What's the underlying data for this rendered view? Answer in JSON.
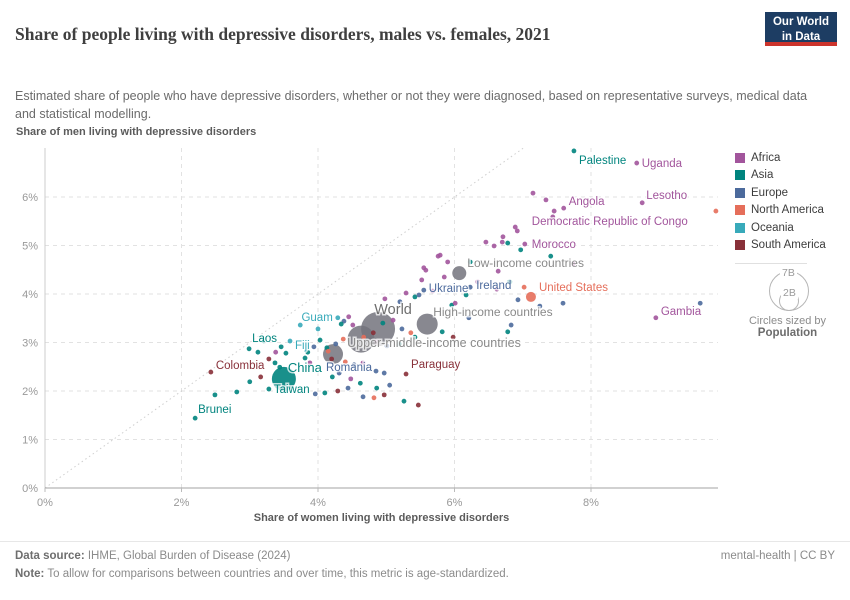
{
  "header": {
    "title": "Share of people living with depressive disorders, males vs. females, 2021",
    "subtitle": "Estimated share of people who have depressive disorders, whether or not they were diagnosed, based on representative surveys, medical data and statistical modelling.",
    "logo_line1": "Our World",
    "logo_line2": "in Data"
  },
  "axes": {
    "x_title": "Share of women living with depressive disorders",
    "y_title": "Share of men living with depressive disorders",
    "x_tick_labels": [
      "0%",
      "2%",
      "4%",
      "6%",
      "8%"
    ],
    "y_tick_labels": [
      "0%",
      "1%",
      "2%",
      "3%",
      "4%",
      "5%",
      "6%"
    ]
  },
  "legend": {
    "items": [
      {
        "label": "Africa",
        "color": "#a2559c"
      },
      {
        "label": "Asia",
        "color": "#00847e"
      },
      {
        "label": "Europe",
        "color": "#4c6a9c"
      },
      {
        "label": "North America",
        "color": "#e56e5a"
      },
      {
        "label": "Oceania",
        "color": "#38aaba"
      },
      {
        "label": "South America",
        "color": "#883039"
      }
    ],
    "size_legend": {
      "big": "7B",
      "small": "2B",
      "caption": "Circles sized by",
      "caption_bold": "Population"
    }
  },
  "footer": {
    "source_bold": "Data source:",
    "source": " IHME, Global Burden of Disease (2024)",
    "right": "mental-health | CC BY",
    "note_bold": "Note:",
    "note": " To allow for comparisons between countries and over time, this metric is age-standardized."
  },
  "colors": {
    "africa": "#a2559c",
    "asia": "#00847e",
    "europe": "#4c6a9c",
    "northamerica": "#e56e5a",
    "oceania": "#38aaba",
    "southamerica": "#883039",
    "agg": "#73737d"
  },
  "chart_data": {
    "type": "scatter",
    "title": "Share of people living with depressive disorders, males vs. females, 2021",
    "xlabel": "Share of women living with depressive disorders (%)",
    "ylabel": "Share of men living with depressive disorders (%)",
    "xlim": [
      0,
      9.86
    ],
    "ylim": [
      0,
      7.01
    ],
    "x_ticks": [
      0,
      2,
      4,
      6,
      8
    ],
    "y_ticks": [
      0,
      1,
      2,
      3,
      4,
      5,
      6
    ],
    "grid": true,
    "diagonal_reference_line": true,
    "legend_position": "right",
    "points": [
      {
        "name": "Palestine",
        "x": 7.75,
        "y": 6.95,
        "c": "asia"
      },
      {
        "name": "Uganda",
        "x": 8.67,
        "y": 6.7,
        "c": "africa"
      },
      {
        "name": "Angola",
        "x": 7.6,
        "y": 5.77,
        "c": "africa"
      },
      {
        "name": "Lesotho",
        "x": 8.75,
        "y": 5.88,
        "c": "africa"
      },
      {
        "name": "Democratic Republic of Congo",
        "x": 7.44,
        "y": 5.59,
        "c": "africa"
      },
      {
        "name": "Morocco",
        "x": 7.03,
        "y": 5.03,
        "c": "africa"
      },
      {
        "name": "Low-income countries",
        "x": 6.07,
        "y": 4.43,
        "c": "agg",
        "r": 7
      },
      {
        "name": "Ukraine",
        "x": 5.55,
        "y": 4.08,
        "c": "europe"
      },
      {
        "name": "Ireland",
        "x": 6.23,
        "y": 4.14,
        "c": "europe"
      },
      {
        "name": "United States",
        "x": 7.12,
        "y": 3.94,
        "c": "northamerica",
        "r": 5
      },
      {
        "name": "World",
        "x": 4.88,
        "y": 3.28,
        "c": "agg",
        "r": 17
      },
      {
        "name": "High-income countries",
        "x": 5.6,
        "y": 3.38,
        "c": "agg",
        "r": 10.5
      },
      {
        "name": "Upper-middle-income countries",
        "x": 4.63,
        "y": 3.07,
        "c": "agg",
        "r": 13.5
      },
      {
        "name": "",
        "x": 4.22,
        "y": 2.76,
        "c": "agg",
        "r": 10
      },
      {
        "name": "Guam",
        "x": 4.29,
        "y": 3.51,
        "c": "oceania"
      },
      {
        "name": "Laos",
        "x": 2.99,
        "y": 2.87,
        "c": "asia"
      },
      {
        "name": "Fiji",
        "x": 3.59,
        "y": 3.03,
        "c": "oceania"
      },
      {
        "name": "Colombia",
        "x": 2.43,
        "y": 2.39,
        "c": "southamerica"
      },
      {
        "name": "China",
        "x": 3.5,
        "y": 2.25,
        "c": "asia",
        "r": 12
      },
      {
        "name": "Taiwan",
        "x": 3.28,
        "y": 2.04,
        "c": "asia"
      },
      {
        "name": "Romania",
        "x": 4.85,
        "y": 2.41,
        "c": "europe"
      },
      {
        "name": "Paraguay",
        "x": 5.29,
        "y": 2.35,
        "c": "southamerica"
      },
      {
        "name": "Brunei",
        "x": 2.2,
        "y": 1.44,
        "c": "asia"
      },
      {
        "name": "Gambia",
        "x": 8.95,
        "y": 3.51,
        "c": "africa"
      },
      {
        "name": "",
        "x": 9.83,
        "y": 5.71,
        "c": "northamerica"
      },
      {
        "name": "",
        "x": 7.15,
        "y": 6.08,
        "c": "africa"
      },
      {
        "name": "",
        "x": 7.34,
        "y": 5.94,
        "c": "africa"
      },
      {
        "name": "",
        "x": 7.46,
        "y": 5.71,
        "c": "africa"
      },
      {
        "name": "",
        "x": 6.92,
        "y": 5.3,
        "c": "africa"
      },
      {
        "name": "",
        "x": 6.46,
        "y": 5.07,
        "c": "africa"
      },
      {
        "name": "",
        "x": 6.58,
        "y": 4.99,
        "c": "africa"
      },
      {
        "name": "",
        "x": 6.7,
        "y": 5.07,
        "c": "africa"
      },
      {
        "name": "",
        "x": 6.78,
        "y": 5.05,
        "c": "asia"
      },
      {
        "name": "",
        "x": 6.97,
        "y": 4.91,
        "c": "asia"
      },
      {
        "name": "",
        "x": 5.76,
        "y": 4.78,
        "c": "africa"
      },
      {
        "name": "",
        "x": 5.55,
        "y": 4.54,
        "c": "africa"
      },
      {
        "name": "",
        "x": 7.41,
        "y": 4.78,
        "c": "asia"
      },
      {
        "name": "",
        "x": 6.89,
        "y": 5.38,
        "c": "africa"
      },
      {
        "name": "",
        "x": 6.71,
        "y": 5.18,
        "c": "africa"
      },
      {
        "name": "",
        "x": 5.52,
        "y": 4.29,
        "c": "africa"
      },
      {
        "name": "",
        "x": 5.58,
        "y": 4.49,
        "c": "africa"
      },
      {
        "name": "",
        "x": 7.74,
        "y": 4.62,
        "c": "africa"
      },
      {
        "name": "",
        "x": 7.59,
        "y": 3.81,
        "c": "europe"
      },
      {
        "name": "",
        "x": 5.79,
        "y": 4.8,
        "c": "africa"
      },
      {
        "name": "",
        "x": 5.9,
        "y": 4.66,
        "c": "africa"
      },
      {
        "name": "",
        "x": 6.23,
        "y": 4.66,
        "c": "asia"
      },
      {
        "name": "",
        "x": 6.64,
        "y": 4.47,
        "c": "africa"
      },
      {
        "name": "",
        "x": 6.34,
        "y": 4.25,
        "c": "africa"
      },
      {
        "name": "",
        "x": 5.85,
        "y": 4.35,
        "c": "africa"
      },
      {
        "name": "",
        "x": 6.62,
        "y": 4.1,
        "c": "africa"
      },
      {
        "name": "",
        "x": 6.81,
        "y": 4.25,
        "c": "asia"
      },
      {
        "name": "",
        "x": 6.17,
        "y": 3.98,
        "c": "asia"
      },
      {
        "name": "",
        "x": 5.68,
        "y": 4.06,
        "c": "africa"
      },
      {
        "name": "",
        "x": 7.02,
        "y": 4.14,
        "c": "northamerica"
      },
      {
        "name": "",
        "x": 7.25,
        "y": 3.75,
        "c": "europe"
      },
      {
        "name": "",
        "x": 6.93,
        "y": 3.88,
        "c": "europe"
      },
      {
        "name": "",
        "x": 6.83,
        "y": 3.36,
        "c": "europe"
      },
      {
        "name": "",
        "x": 6.78,
        "y": 3.22,
        "c": "asia"
      },
      {
        "name": "",
        "x": 5.96,
        "y": 3.77,
        "c": "asia"
      },
      {
        "name": "",
        "x": 6.01,
        "y": 3.81,
        "c": "africa"
      },
      {
        "name": "",
        "x": 5.82,
        "y": 3.22,
        "c": "asia"
      },
      {
        "name": "",
        "x": 5.98,
        "y": 3.11,
        "c": "southamerica"
      },
      {
        "name": "",
        "x": 6.21,
        "y": 3.51,
        "c": "europe"
      },
      {
        "name": "",
        "x": 5.29,
        "y": 4.02,
        "c": "africa"
      },
      {
        "name": "",
        "x": 5.42,
        "y": 3.94,
        "c": "asia"
      },
      {
        "name": "",
        "x": 5.48,
        "y": 3.98,
        "c": "europe"
      },
      {
        "name": "",
        "x": 5.2,
        "y": 3.84,
        "c": "europe"
      },
      {
        "name": "",
        "x": 4.98,
        "y": 3.9,
        "c": "africa"
      },
      {
        "name": "",
        "x": 4.45,
        "y": 3.53,
        "c": "africa"
      },
      {
        "name": "",
        "x": 4.38,
        "y": 3.44,
        "c": "europe"
      },
      {
        "name": "",
        "x": 4.51,
        "y": 3.36,
        "c": "africa"
      },
      {
        "name": "",
        "x": 4.95,
        "y": 3.4,
        "c": "asia"
      },
      {
        "name": "",
        "x": 5.1,
        "y": 3.46,
        "c": "africa"
      },
      {
        "name": "",
        "x": 5.23,
        "y": 3.28,
        "c": "europe"
      },
      {
        "name": "",
        "x": 5.36,
        "y": 3.2,
        "c": "northamerica"
      },
      {
        "name": "",
        "x": 5.42,
        "y": 3.11,
        "c": "asia"
      },
      {
        "name": "",
        "x": 4.81,
        "y": 3.2,
        "c": "southamerica"
      },
      {
        "name": "",
        "x": 4.67,
        "y": 3.11,
        "c": "northamerica"
      },
      {
        "name": "",
        "x": 4.86,
        "y": 3.01,
        "c": "africa"
      },
      {
        "name": "",
        "x": 5.01,
        "y": 2.93,
        "c": "europe"
      },
      {
        "name": "",
        "x": 5.19,
        "y": 2.97,
        "c": "asia"
      },
      {
        "name": "",
        "x": 4.37,
        "y": 3.07,
        "c": "northamerica"
      },
      {
        "name": "",
        "x": 4.26,
        "y": 2.97,
        "c": "europe"
      },
      {
        "name": "",
        "x": 4.13,
        "y": 2.89,
        "c": "asia"
      },
      {
        "name": "",
        "x": 4.03,
        "y": 3.05,
        "c": "asia"
      },
      {
        "name": "",
        "x": 3.94,
        "y": 2.91,
        "c": "europe"
      },
      {
        "name": "",
        "x": 3.85,
        "y": 2.8,
        "c": "asia"
      },
      {
        "name": "",
        "x": 4.2,
        "y": 2.66,
        "c": "southamerica"
      },
      {
        "name": "",
        "x": 4.4,
        "y": 2.6,
        "c": "northamerica"
      },
      {
        "name": "",
        "x": 4.53,
        "y": 2.54,
        "c": "europe"
      },
      {
        "name": "",
        "x": 4.66,
        "y": 2.58,
        "c": "africa"
      },
      {
        "name": "",
        "x": 4.97,
        "y": 2.37,
        "c": "europe"
      },
      {
        "name": "",
        "x": 4.31,
        "y": 2.37,
        "c": "europe"
      },
      {
        "name": "",
        "x": 4.21,
        "y": 2.29,
        "c": "asia"
      },
      {
        "name": "",
        "x": 4.48,
        "y": 2.25,
        "c": "africa"
      },
      {
        "name": "",
        "x": 4.62,
        "y": 2.16,
        "c": "asia"
      },
      {
        "name": "",
        "x": 4.44,
        "y": 2.06,
        "c": "europe"
      },
      {
        "name": "",
        "x": 4.29,
        "y": 2.0,
        "c": "southamerica"
      },
      {
        "name": "",
        "x": 4.86,
        "y": 2.06,
        "c": "asia"
      },
      {
        "name": "",
        "x": 5.05,
        "y": 2.12,
        "c": "europe"
      },
      {
        "name": "",
        "x": 3.96,
        "y": 1.94,
        "c": "europe"
      },
      {
        "name": "",
        "x": 4.1,
        "y": 1.96,
        "c": "asia"
      },
      {
        "name": "",
        "x": 4.66,
        "y": 1.88,
        "c": "europe"
      },
      {
        "name": "",
        "x": 4.82,
        "y": 1.86,
        "c": "northamerica"
      },
      {
        "name": "",
        "x": 4.97,
        "y": 1.92,
        "c": "southamerica"
      },
      {
        "name": "",
        "x": 5.26,
        "y": 1.79,
        "c": "asia"
      },
      {
        "name": "",
        "x": 5.47,
        "y": 1.71,
        "c": "southamerica"
      },
      {
        "name": "",
        "x": 3.28,
        "y": 2.66,
        "c": "southamerica"
      },
      {
        "name": "",
        "x": 3.16,
        "y": 2.29,
        "c": "southamerica"
      },
      {
        "name": "",
        "x": 3.38,
        "y": 2.8,
        "c": "africa"
      },
      {
        "name": "",
        "x": 3.46,
        "y": 2.91,
        "c": "asia"
      },
      {
        "name": "",
        "x": 3.53,
        "y": 2.78,
        "c": "asia"
      },
      {
        "name": "",
        "x": 3.37,
        "y": 2.58,
        "c": "asia"
      },
      {
        "name": "",
        "x": 3.44,
        "y": 2.49,
        "c": "asia"
      },
      {
        "name": "",
        "x": 3.0,
        "y": 2.19,
        "c": "asia"
      },
      {
        "name": "",
        "x": 2.81,
        "y": 1.98,
        "c": "asia"
      },
      {
        "name": "",
        "x": 2.49,
        "y": 1.92,
        "c": "asia"
      },
      {
        "name": "",
        "x": 3.81,
        "y": 2.68,
        "c": "asia"
      },
      {
        "name": "",
        "x": 3.88,
        "y": 2.58,
        "c": "africa"
      },
      {
        "name": "",
        "x": 3.74,
        "y": 3.36,
        "c": "oceania"
      },
      {
        "name": "",
        "x": 4.0,
        "y": 3.28,
        "c": "oceania"
      },
      {
        "name": "",
        "x": 4.34,
        "y": 3.38,
        "c": "asia"
      },
      {
        "name": "",
        "x": 3.12,
        "y": 2.8,
        "c": "asia"
      },
      {
        "name": "",
        "x": 3.21,
        "y": 3.03,
        "c": "asia"
      },
      {
        "name": "",
        "x": 9.6,
        "y": 3.81,
        "c": "europe"
      },
      {
        "name": "",
        "x": 4.15,
        "y": 2.82,
        "c": "northamerica"
      }
    ],
    "labels": [
      {
        "text": "Palestine",
        "x": 7.75,
        "y": 6.95,
        "ox": 5,
        "oy": 13,
        "anchor": "start",
        "size": 11.5,
        "color": "asia"
      },
      {
        "text": "Uganda",
        "x": 8.67,
        "y": 6.7,
        "ox": 5,
        "oy": 4,
        "anchor": "start",
        "size": 11.5,
        "color": "africa"
      },
      {
        "text": "Angola",
        "x": 7.6,
        "y": 5.77,
        "ox": 5,
        "oy": -3,
        "anchor": "start",
        "size": 11.5,
        "color": "africa"
      },
      {
        "text": "Lesotho",
        "x": 8.75,
        "y": 5.88,
        "ox": 4,
        "oy": -4,
        "anchor": "start",
        "size": 11.5,
        "color": "africa"
      },
      {
        "text": "Democratic Republic of Congo",
        "x": 7.44,
        "y": 5.59,
        "ox": 57,
        "oy": 8,
        "anchor": "middle",
        "size": 11.5,
        "color": "africa"
      },
      {
        "text": "Morocco",
        "x": 7.03,
        "y": 5.03,
        "ox": 7,
        "oy": 4,
        "anchor": "start",
        "size": 11.5,
        "color": "africa"
      },
      {
        "text": "Low-income countries",
        "x": 6.07,
        "y": 4.43,
        "ox": 8,
        "oy": -6,
        "anchor": "start",
        "size": 12,
        "color": "agg_label"
      },
      {
        "text": "Ukraine",
        "x": 5.55,
        "y": 4.08,
        "ox": 5,
        "oy": 2,
        "anchor": "start",
        "size": 11.5,
        "color": "europe"
      },
      {
        "text": "Ireland",
        "x": 6.23,
        "y": 4.14,
        "ox": 6,
        "oy": 2,
        "anchor": "start",
        "size": 11.5,
        "color": "europe"
      },
      {
        "text": "United States",
        "x": 7.12,
        "y": 3.94,
        "ox": 8,
        "oy": -6,
        "anchor": "start",
        "size": 11.5,
        "color": "northamerica"
      },
      {
        "text": "World",
        "x": 4.88,
        "y": 3.28,
        "ox": 15,
        "oy": -15,
        "anchor": "middle",
        "size": 14.5,
        "color": "world_label"
      },
      {
        "text": "High-income countries",
        "x": 5.6,
        "y": 3.38,
        "ox": 6,
        "oy": -8,
        "anchor": "start",
        "size": 12,
        "color": "agg_label"
      },
      {
        "text": "Upper-middle-income countries",
        "x": 4.63,
        "y": 3.07,
        "ox": 73,
        "oy": 8,
        "anchor": "middle",
        "size": 12.5,
        "color": "agg_label"
      },
      {
        "text": "Guam",
        "x": 4.29,
        "y": 3.51,
        "ox": -5,
        "oy": 3,
        "anchor": "end",
        "size": 11.5,
        "color": "oceania"
      },
      {
        "text": "Laos",
        "x": 2.99,
        "y": 2.87,
        "ox": 3,
        "oy": -7,
        "anchor": "start",
        "size": 11.5,
        "color": "asia"
      },
      {
        "text": "Fiji",
        "x": 3.59,
        "y": 3.03,
        "ox": 5,
        "oy": 8,
        "anchor": "start",
        "size": 11.5,
        "color": "oceania"
      },
      {
        "text": "Colombia",
        "x": 2.43,
        "y": 2.39,
        "ox": 5,
        "oy": -3,
        "anchor": "start",
        "size": 11.5,
        "color": "southamerica"
      },
      {
        "text": "China",
        "x": 3.5,
        "y": 2.25,
        "ox": 4,
        "oy": -7,
        "anchor": "start",
        "size": 13,
        "color": "asia"
      },
      {
        "text": "Taiwan",
        "x": 3.28,
        "y": 2.04,
        "ox": 5,
        "oy": 4,
        "anchor": "start",
        "size": 11.5,
        "color": "asia"
      },
      {
        "text": "Romania",
        "x": 4.85,
        "y": 2.41,
        "ox": -4,
        "oy": 0,
        "anchor": "end",
        "size": 11.5,
        "color": "europe"
      },
      {
        "text": "Paraguay",
        "x": 5.29,
        "y": 2.35,
        "ox": 5,
        "oy": -6,
        "anchor": "start",
        "size": 11.5,
        "color": "southamerica"
      },
      {
        "text": "Brunei",
        "x": 2.2,
        "y": 1.44,
        "ox": 3,
        "oy": -5,
        "anchor": "start",
        "size": 11.5,
        "color": "asia"
      },
      {
        "text": "Gambia",
        "x": 8.95,
        "y": 3.51,
        "ox": 5,
        "oy": -3,
        "anchor": "start",
        "size": 11.5,
        "color": "africa"
      }
    ]
  }
}
